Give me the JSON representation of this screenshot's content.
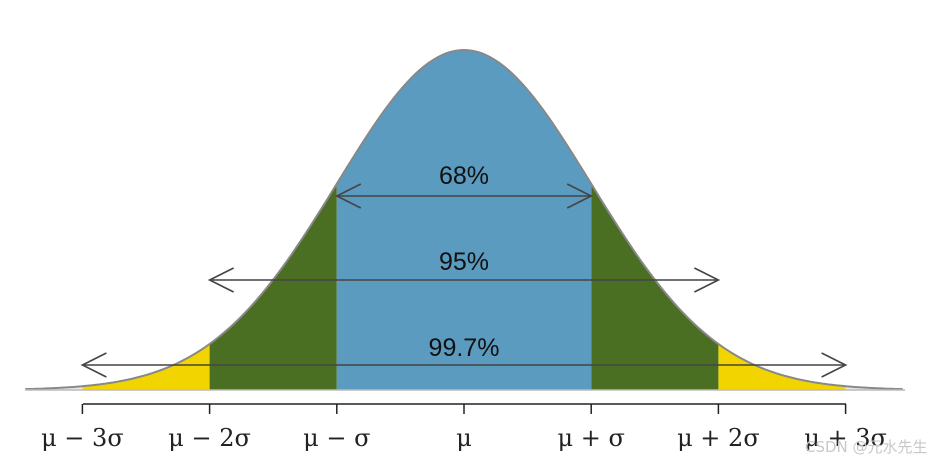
{
  "diagram": {
    "type": "normal-distribution-empirical-rule",
    "regions": [
      {
        "label": "68%",
        "from_sigma": -1,
        "to_sigma": 1,
        "color": "#5b9bbf"
      },
      {
        "label": "95%",
        "from_sigma": -2,
        "to_sigma": 2,
        "color": "#4a6e22"
      },
      {
        "label": "99.7%",
        "from_sigma": -3,
        "to_sigma": 3,
        "color": "#f2d500"
      }
    ],
    "tails_color": "#e8e8e8",
    "curve_color": "#888888",
    "axis_ticks": [
      {
        "label": "μ − 3σ",
        "sigma": -3
      },
      {
        "label": "μ − 2σ",
        "sigma": -2
      },
      {
        "label": "μ − σ",
        "sigma": -1
      },
      {
        "label": "μ",
        "sigma": 0
      },
      {
        "label": "μ + σ",
        "sigma": 1
      },
      {
        "label": "μ + 2σ",
        "sigma": 2
      },
      {
        "label": "μ + 3σ",
        "sigma": 3
      }
    ]
  },
  "watermark": "CSDN @元水先生"
}
